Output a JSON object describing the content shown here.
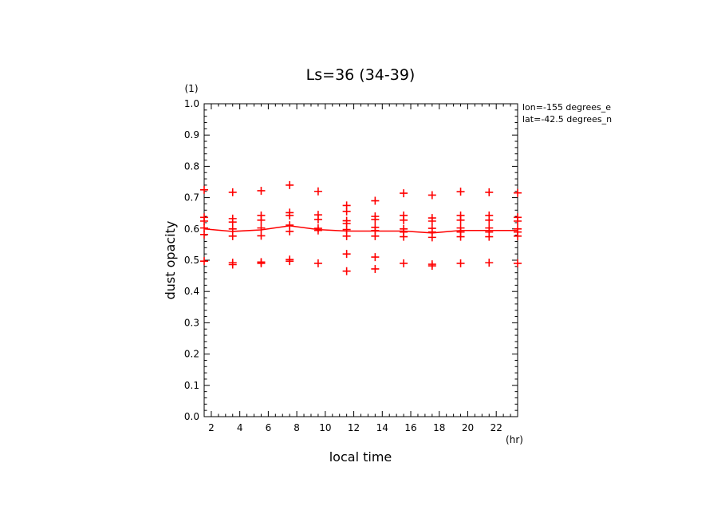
{
  "chart_data": {
    "type": "scatter",
    "title": "Ls=36 (34-39)",
    "xlabel": "local time",
    "ylabel": "dust opacity",
    "x_unit": "(hr)",
    "y_unit": "(1)",
    "xlim": [
      1.5,
      23.5
    ],
    "ylim": [
      0.0,
      1.0
    ],
    "x_ticks": [
      2,
      4,
      6,
      8,
      10,
      12,
      14,
      16,
      18,
      20,
      22
    ],
    "y_ticks": [
      "0.0",
      "0.1",
      "0.2",
      "0.3",
      "0.4",
      "0.5",
      "0.6",
      "0.7",
      "0.8",
      "0.9",
      "1.0"
    ],
    "annotations": [
      "lon=-155 degrees_e",
      "lat=-42.5 degrees_n"
    ],
    "colors": {
      "series": "#ff0000",
      "axes": "#000000"
    },
    "mean_line": {
      "x": [
        1.5,
        3.5,
        5.5,
        7.5,
        9.5,
        11.5,
        13.5,
        15.5,
        17.5,
        19.5,
        21.5,
        23.5
      ],
      "y": [
        0.6,
        0.592,
        0.597,
        0.61,
        0.598,
        0.593,
        0.593,
        0.593,
        0.587,
        0.595,
        0.595,
        0.595
      ]
    },
    "points": [
      {
        "x": 1.5,
        "y": [
          0.725,
          0.637,
          0.625,
          0.603,
          0.582,
          0.497
        ]
      },
      {
        "x": 3.5,
        "y": [
          0.717,
          0.633,
          0.622,
          0.6,
          0.577,
          0.492,
          0.486
        ]
      },
      {
        "x": 5.5,
        "y": [
          0.722,
          0.643,
          0.628,
          0.603,
          0.578,
          0.494,
          0.49
        ]
      },
      {
        "x": 7.5,
        "y": [
          0.74,
          0.652,
          0.643,
          0.612,
          0.592,
          0.502,
          0.497
        ]
      },
      {
        "x": 9.5,
        "y": [
          0.72,
          0.645,
          0.63,
          0.602,
          0.595,
          0.49
        ]
      },
      {
        "x": 11.5,
        "y": [
          0.675,
          0.656,
          0.626,
          0.617,
          0.598,
          0.577,
          0.52,
          0.465
        ]
      },
      {
        "x": 13.5,
        "y": [
          0.69,
          0.64,
          0.63,
          0.605,
          0.595,
          0.577,
          0.51,
          0.472
        ]
      },
      {
        "x": 15.5,
        "y": [
          0.714,
          0.643,
          0.628,
          0.6,
          0.59,
          0.575,
          0.49
        ]
      },
      {
        "x": 17.5,
        "y": [
          0.708,
          0.635,
          0.625,
          0.602,
          0.59,
          0.573,
          0.487,
          0.482
        ]
      },
      {
        "x": 19.5,
        "y": [
          0.719,
          0.643,
          0.628,
          0.603,
          0.59,
          0.575,
          0.49
        ]
      },
      {
        "x": 21.5,
        "y": [
          0.717,
          0.643,
          0.628,
          0.603,
          0.59,
          0.575,
          0.492
        ]
      },
      {
        "x": 23.5,
        "y": [
          0.715,
          0.637,
          0.625,
          0.6,
          0.59,
          0.577,
          0.49
        ]
      }
    ]
  }
}
